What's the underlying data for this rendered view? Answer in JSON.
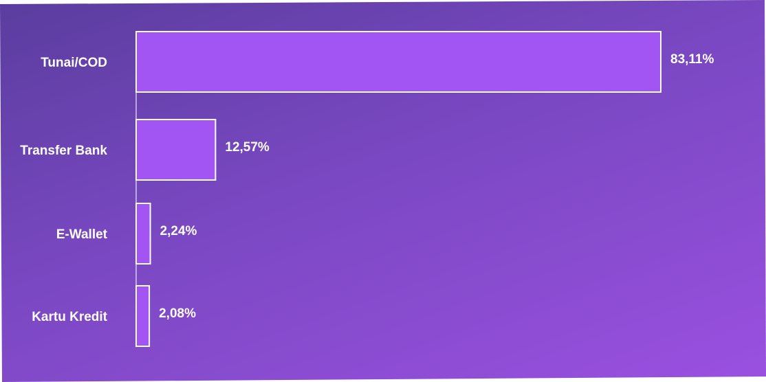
{
  "chart_data": {
    "type": "bar",
    "orientation": "horizontal",
    "categories": [
      "Tunai/COD",
      "Transfer Bank",
      "E-Wallet",
      "Kartu Kredit"
    ],
    "values": [
      83.11,
      12.57,
      2.24,
      2.08
    ],
    "value_labels": [
      "83,11%",
      "12,57%",
      "2,24%",
      "2,08%"
    ],
    "xlim": [
      0,
      100
    ],
    "grid": false,
    "legend": "none",
    "colors": {
      "bar": "#a255f2",
      "bar_outline": "#ffffff",
      "background_start": "#5a3d9e",
      "background_end": "#9a50e0",
      "text": "#ffffff"
    }
  }
}
